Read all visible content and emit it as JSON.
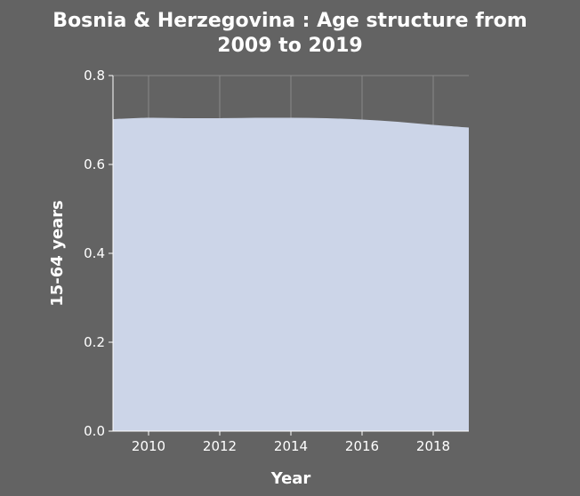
{
  "chart_data": {
    "type": "area",
    "title_lines": [
      "Bosnia & Herzegovina : Age structure from",
      "2009 to 2019"
    ],
    "xlabel": "Year",
    "ylabel": "15-64 years",
    "x": [
      2009,
      2010,
      2011,
      2012,
      2013,
      2014,
      2015,
      2016,
      2017,
      2018,
      2019
    ],
    "series": [
      {
        "values": [
          0.702,
          0.705,
          0.704,
          0.704,
          0.705,
          0.705,
          0.704,
          0.701,
          0.696,
          0.689,
          0.683
        ]
      }
    ],
    "xlim": [
      2009,
      2019
    ],
    "ylim": [
      0,
      0.8
    ],
    "xticks": [
      2010,
      2012,
      2014,
      2016,
      2018
    ],
    "yticks": [
      0.0,
      0.2,
      0.4,
      0.6,
      0.8
    ],
    "xtick_labels": [
      "2010",
      "2012",
      "2014",
      "2016",
      "2018"
    ],
    "ytick_labels": [
      "0.0",
      "0.2",
      "0.4",
      "0.6",
      "0.8"
    ],
    "grid": true,
    "colors": {
      "background": "#636363",
      "fill": "#ccd5e8",
      "grid": "#8a8a8a",
      "text": "#ffffff"
    }
  }
}
